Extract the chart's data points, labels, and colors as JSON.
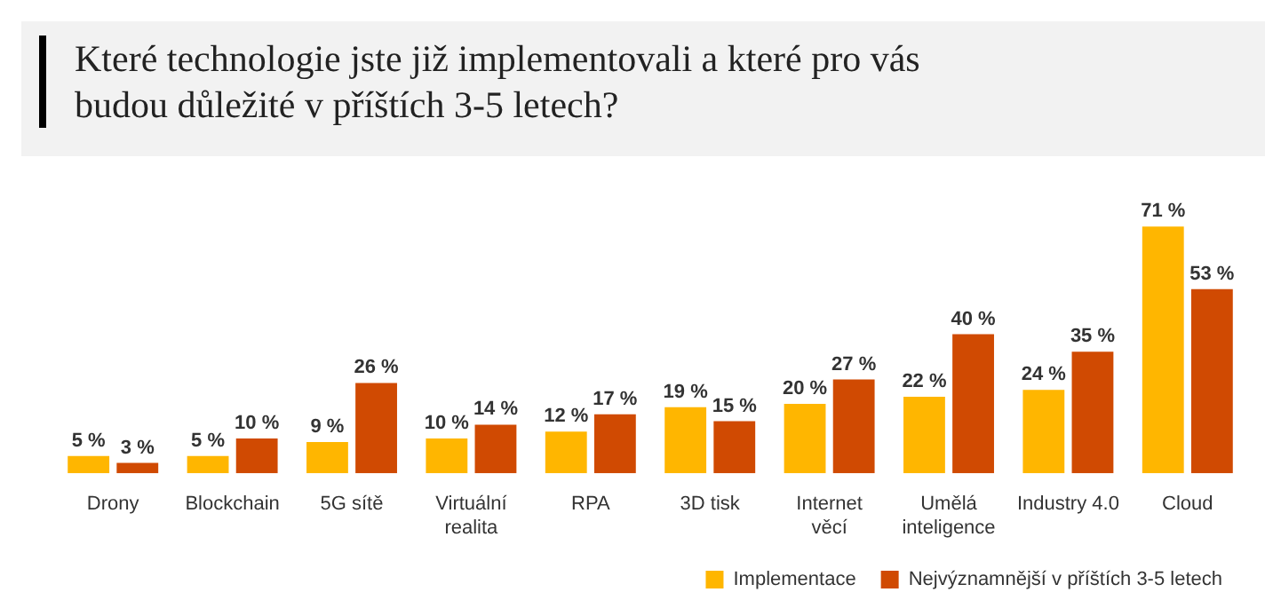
{
  "chart_data": {
    "type": "bar",
    "title": "Které technologie jste již implementovali a které pro vás budou důležité v příštích 3-5 letech?",
    "categories": [
      "Drony",
      "Blockchain",
      "5G sítě",
      "Virtuální realita",
      "RPA",
      "3D tisk",
      "Internet věcí",
      "Umělá inteligence",
      "Industry 4.0",
      "Cloud"
    ],
    "series": [
      {
        "name": "Implementace",
        "color": "#ffb600",
        "values": [
          5,
          5,
          9,
          10,
          12,
          19,
          20,
          22,
          24,
          71
        ],
        "value_labels": [
          "5 %",
          "5 %",
          "9 %",
          "10 %",
          "12 %",
          "19 %",
          "20 %",
          "22 %",
          "24 %",
          "71 %"
        ]
      },
      {
        "name": "Nejvýznamnější v příštích 3-5 letech",
        "color": "#d04a02",
        "values": [
          3,
          10,
          26,
          14,
          17,
          15,
          27,
          40,
          35,
          53
        ],
        "value_labels": [
          "3 %",
          "10 %",
          "26 %",
          "14 %",
          "17 %",
          "15 %",
          "27 %",
          "40 %",
          "35 %",
          "53 %"
        ]
      }
    ],
    "legend": "bottom right",
    "grid": false
  }
}
